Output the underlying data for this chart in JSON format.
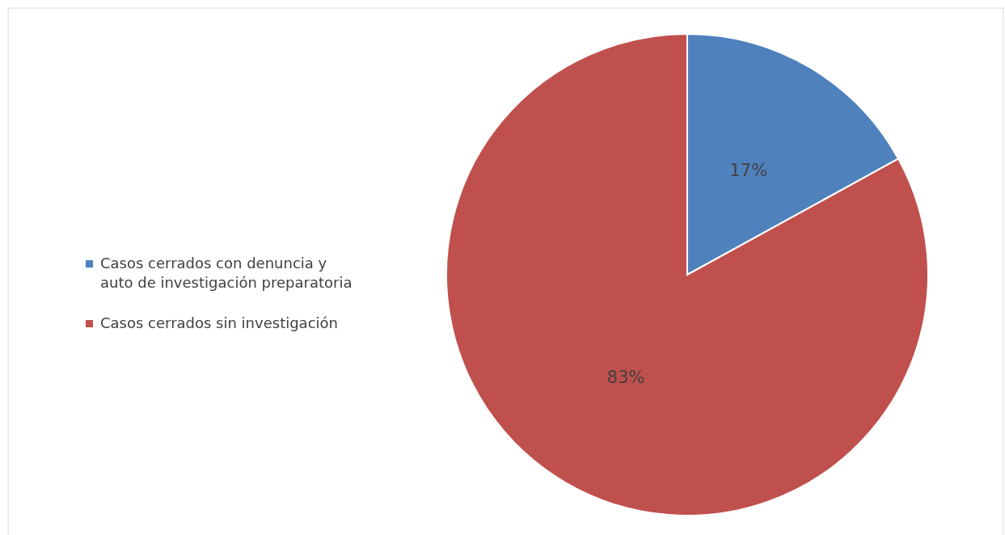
{
  "chart_data": {
    "type": "pie",
    "categories": [
      "Casos cerrados con denuncia y auto de investigación preparatoria",
      "Casos cerrados sin investigación"
    ],
    "values": [
      17,
      83
    ],
    "colors": [
      "#4f81bd",
      "#c0504d"
    ],
    "value_labels": [
      "17%",
      "83%"
    ],
    "legend": "left"
  }
}
